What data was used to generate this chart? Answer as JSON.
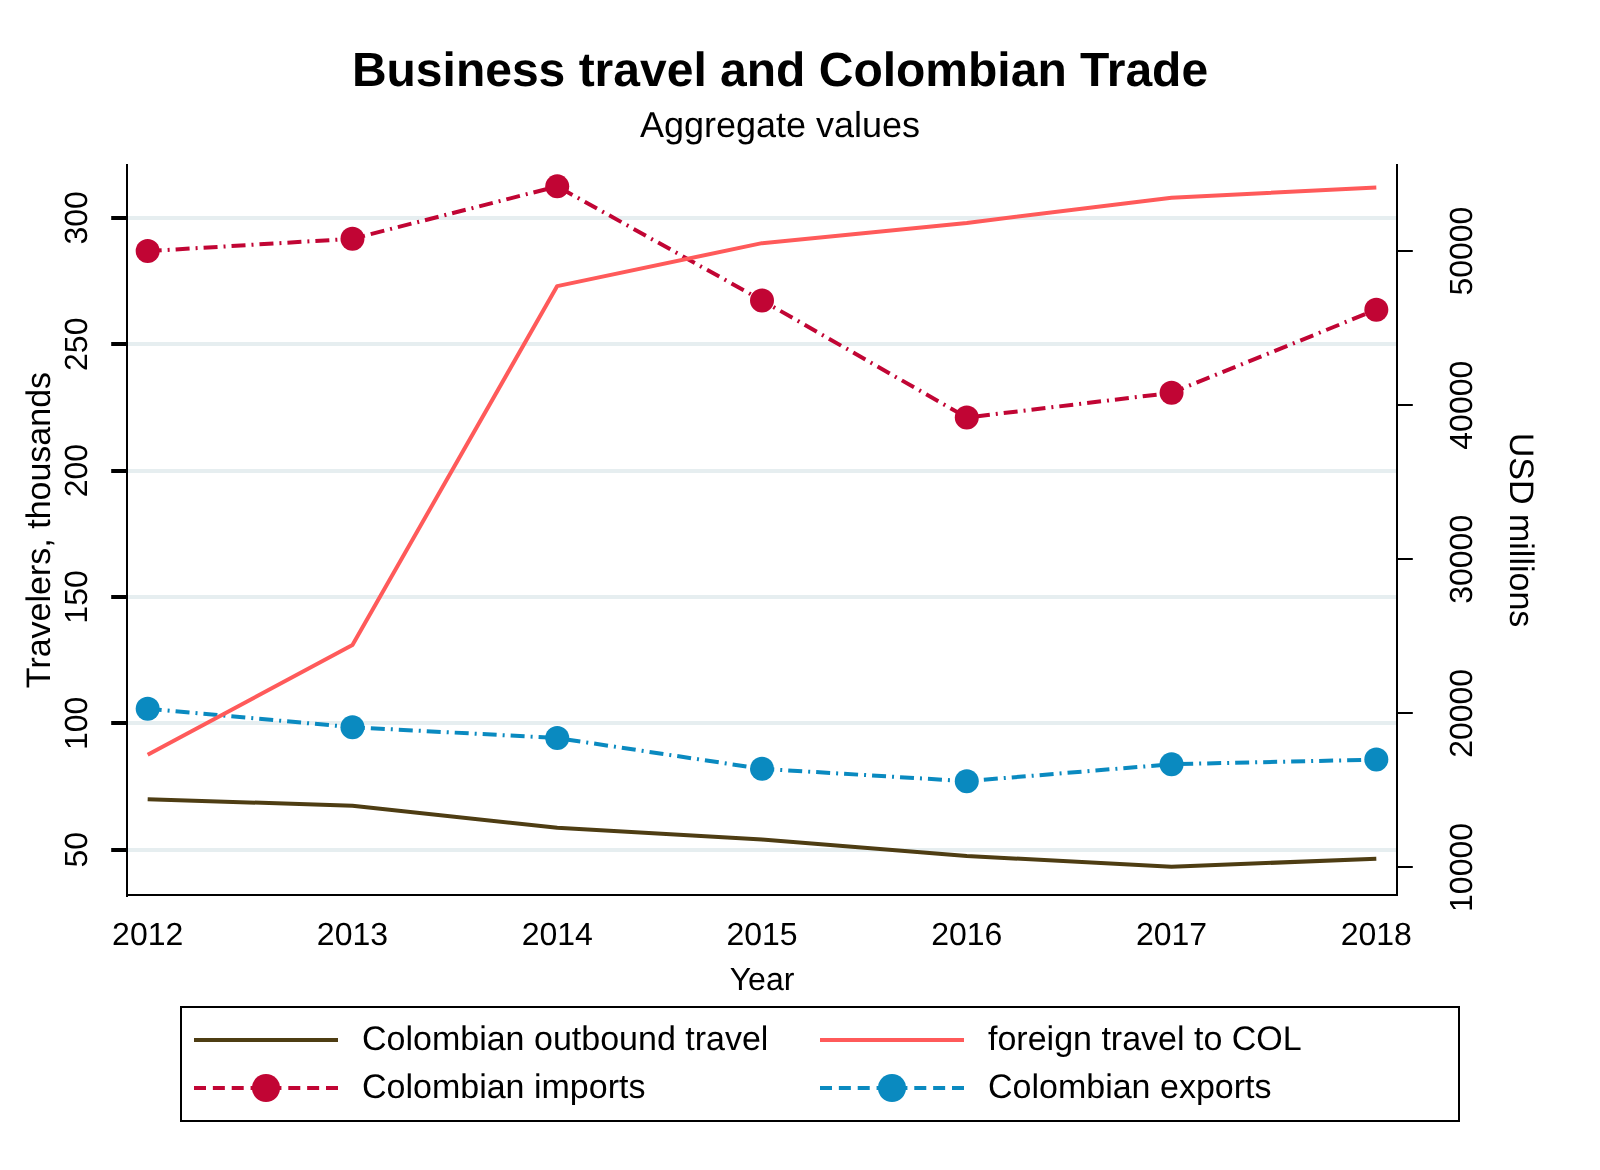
{
  "chart_data": {
    "type": "line",
    "title": "Business travel and Colombian Trade",
    "subtitle": "Aggregate values",
    "xlabel": "Year",
    "ylabel": "Travelers, thousands",
    "y2label": "USD millions",
    "x": [
      2012,
      2013,
      2014,
      2015,
      2016,
      2017,
      2018
    ],
    "xlim": [
      2011.9,
      2018.1
    ],
    "xticks": [
      2012,
      2013,
      2014,
      2015,
      2016,
      2017,
      2018
    ],
    "ylim": [
      32,
      321
    ],
    "yticks": [
      50,
      100,
      150,
      200,
      250,
      300
    ],
    "y2lim": [
      8200,
      55600
    ],
    "y2ticks": [
      10000,
      20000,
      30000,
      40000,
      50000
    ],
    "grid": "y",
    "legend": "bottom",
    "series": [
      {
        "name": "Colombian outbound travel",
        "color": "#4e3d13",
        "values": [
          70,
          67.4,
          58.7,
          54,
          47.5,
          43.3,
          46.4
        ],
        "marker": "none",
        "line_style": "solid"
      },
      {
        "name": "foreign travel to COL",
        "color": "#ff5a5a",
        "values": [
          87.6,
          131,
          273,
          290,
          298,
          308,
          312
        ],
        "marker": "none",
        "line_style": "solid"
      },
      {
        "name": "Colombian imports",
        "color": "#c10534",
        "values": [
          50000,
          50800,
          54200,
          46800,
          39200,
          40800,
          46200
        ],
        "axis": "y2",
        "marker": "circle",
        "line_style": "dashdot"
      },
      {
        "name": "Colombian exports",
        "color": "#0a8ac0",
        "values": [
          20300,
          19100,
          18400,
          16400,
          15600,
          16700,
          17000
        ],
        "axis": "y2",
        "marker": "circle",
        "line_style": "dashdot"
      }
    ]
  }
}
